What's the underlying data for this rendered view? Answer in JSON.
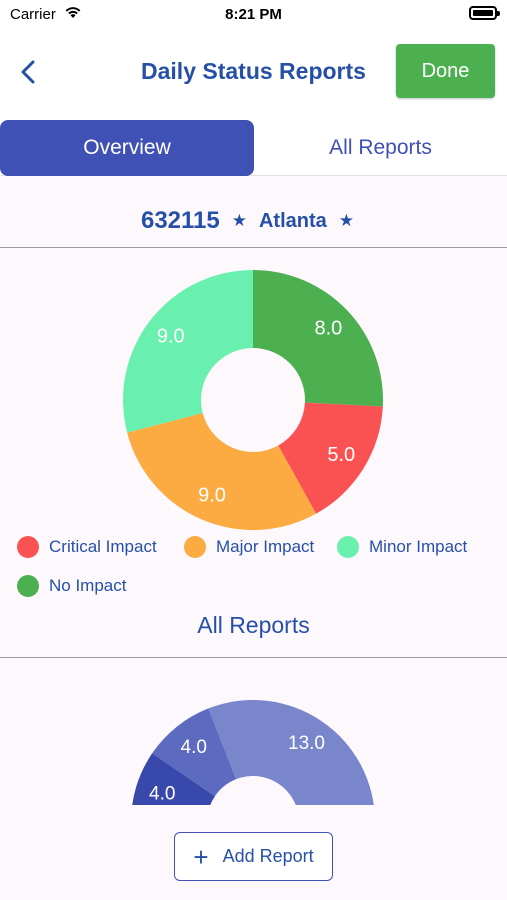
{
  "status_bar": {
    "carrier": "Carrier",
    "time": "8:21 PM"
  },
  "nav": {
    "title": "Daily Status Reports",
    "done_label": "Done"
  },
  "tabs": [
    {
      "label": "Overview",
      "active": true
    },
    {
      "label": "All Reports",
      "active": false
    }
  ],
  "site": {
    "id": "632115",
    "name": "Atlanta"
  },
  "chart_data": [
    {
      "type": "pie",
      "style": "donut",
      "categories": [
        "No Impact",
        "Critical Impact",
        "Major Impact",
        "Minor Impact"
      ],
      "values": [
        8.0,
        5.0,
        9.0,
        9.0
      ],
      "labels": [
        "8.0",
        "5.0",
        "9.0",
        "9.0"
      ],
      "colors": [
        "#4caf50",
        "#fa5252",
        "#fbab42",
        "#69f0ae"
      ],
      "legend": [
        {
          "label": "Critical Impact",
          "color": "#fa5252"
        },
        {
          "label": "Major Impact",
          "color": "#fbab42"
        },
        {
          "label": "Minor Impact",
          "color": "#69f0ae"
        },
        {
          "label": "No Impact",
          "color": "#4caf50"
        }
      ],
      "legend_position": "bottom"
    },
    {
      "type": "pie",
      "style": "half-donut (partially visible)",
      "values": [
        4.0,
        4.0,
        13.0
      ],
      "labels": [
        "4.0",
        "4.0",
        "13.0"
      ],
      "colors": [
        "#3949ab",
        "#5c6bc0",
        "#7986cb"
      ]
    }
  ],
  "section": {
    "all_reports_title": "All Reports"
  },
  "actions": {
    "add_report_label": "Add Report"
  }
}
